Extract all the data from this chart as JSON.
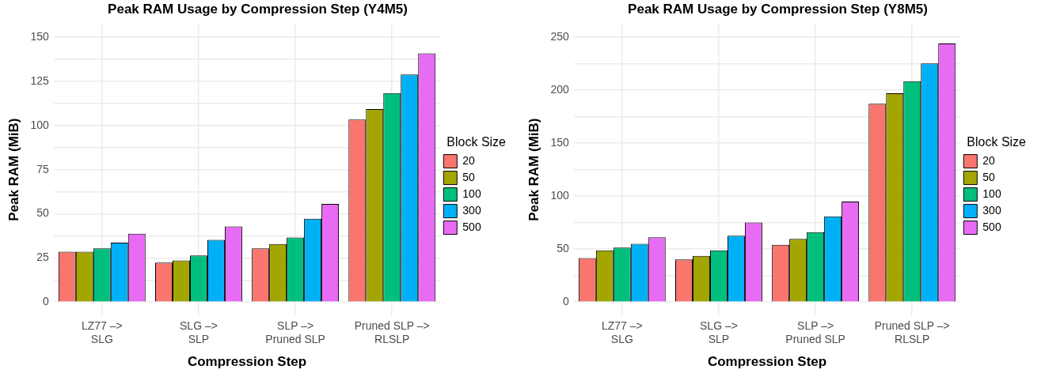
{
  "chart_data": [
    {
      "type": "bar",
      "title": "Peak RAM Usage by Compression Step (Y4M5)",
      "xlabel": "Compression Step",
      "ylabel": "Peak RAM (MiB)",
      "legend_title": "Block Size",
      "legend": "right",
      "grid": true,
      "categories": [
        "LZ77 –>\nSLG",
        "SLG –>\nSLP",
        "SLP –>\nPruned SLP",
        "Pruned SLP –>\nRLSLP"
      ],
      "ylim": [
        -7.5,
        157.5
      ],
      "yticks": [
        0,
        {
          "value": 12.5,
          "label": null
        },
        25,
        {
          "value": 37.5,
          "label": null
        },
        50,
        {
          "value": 62.5,
          "label": null
        },
        75,
        {
          "value": 87.5,
          "label": null
        },
        100,
        {
          "value": 112.5,
          "label": null
        },
        125,
        {
          "value": 137.5,
          "label": null
        },
        150
      ],
      "series": [
        {
          "name": "20",
          "color": "#f8766d",
          "values": [
            28.5,
            22.4,
            30.4,
            103.4
          ]
        },
        {
          "name": "50",
          "color": "#a3a500",
          "values": [
            28.5,
            23.6,
            32.9,
            109.3
          ]
        },
        {
          "name": "100",
          "color": "#00bf7d",
          "values": [
            30.4,
            26.4,
            36.6,
            118.4
          ]
        },
        {
          "name": "300",
          "color": "#00b0f6",
          "values": [
            33.7,
            35.3,
            47.2,
            128.9
          ]
        },
        {
          "name": "500",
          "color": "#e76bf3",
          "values": [
            38.7,
            42.9,
            55.6,
            140.9
          ]
        }
      ]
    },
    {
      "type": "bar",
      "title": "Peak RAM Usage by Compression Step (Y8M5)",
      "xlabel": "Compression Step",
      "ylabel": "Peak RAM (MiB)",
      "legend_title": "Block Size",
      "legend": "right",
      "grid": true,
      "categories": [
        "LZ77 –>\nSLG",
        "SLG –>\nSLP",
        "SLP –>\nPruned SLP",
        "Pruned SLP –>\nRLSLP"
      ],
      "ylim": [
        -12.5,
        262.5
      ],
      "yticks": [
        0,
        {
          "value": 25,
          "label": null
        },
        50,
        {
          "value": 75,
          "label": null
        },
        100,
        {
          "value": 125,
          "label": null
        },
        150,
        {
          "value": 175,
          "label": null
        },
        200,
        {
          "value": 225,
          "label": null
        },
        250
      ],
      "series": [
        {
          "name": "20",
          "color": "#f8766d",
          "values": [
            41.5,
            40.3,
            54.0,
            187.3
          ]
        },
        {
          "name": "50",
          "color": "#a3a500",
          "values": [
            48.9,
            43.6,
            59.6,
            197.2
          ]
        },
        {
          "name": "100",
          "color": "#00bf7d",
          "values": [
            51.4,
            48.9,
            66.1,
            208.5
          ]
        },
        {
          "name": "300",
          "color": "#00b0f6",
          "values": [
            55.0,
            62.7,
            81.0,
            225.4
          ]
        },
        {
          "name": "500",
          "color": "#e76bf3",
          "values": [
            61.2,
            75.2,
            95.0,
            244.2
          ]
        }
      ]
    }
  ]
}
